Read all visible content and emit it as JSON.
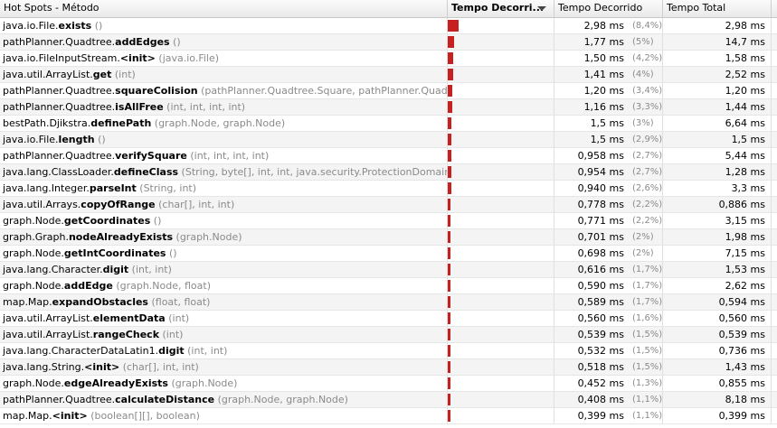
{
  "header": {
    "method_label": "Hot Spots - Método",
    "bar_label": "Tempo Decorri...",
    "self_time_label": "Tempo Decorrido",
    "total_time_label": "Tempo Total"
  },
  "colors": {
    "bar": "#c62020",
    "muted_text": "#8a8a8a"
  },
  "rows": [
    {
      "prefix": "java.io.File.",
      "name": "exists",
      "params": "()",
      "self_time": "2,98 ms",
      "self_pct": "(8,4%)",
      "pct_value": 8.4,
      "total_time": "2,98 ms"
    },
    {
      "prefix": "pathPlanner.Quadtree.",
      "name": "addEdges",
      "params": "()",
      "self_time": "1,77 ms",
      "self_pct": "(5%)",
      "pct_value": 5.0,
      "total_time": "14,7 ms"
    },
    {
      "prefix": "java.io.FileInputStream.",
      "name": "<init>",
      "params": "(java.io.File)",
      "self_time": "1,50 ms",
      "self_pct": "(4,2%)",
      "pct_value": 4.2,
      "total_time": "1,58 ms"
    },
    {
      "prefix": "java.util.ArrayList.",
      "name": "get",
      "params": "(int)",
      "self_time": "1,41 ms",
      "self_pct": "(4%)",
      "pct_value": 4.0,
      "total_time": "2,52 ms"
    },
    {
      "prefix": "pathPlanner.Quadtree.",
      "name": "squareColision",
      "params": "(pathPlanner.Quadtree.Square, pathPlanner.Quadtree.S...",
      "self_time": "1,20 ms",
      "self_pct": "(3,4%)",
      "pct_value": 3.4,
      "total_time": "1,20 ms"
    },
    {
      "prefix": "pathPlanner.Quadtree.",
      "name": "isAllFree",
      "params": "(int, int, int, int)",
      "self_time": "1,16 ms",
      "self_pct": "(3,3%)",
      "pct_value": 3.3,
      "total_time": "1,44 ms"
    },
    {
      "prefix": "bestPath.Djikstra.",
      "name": "definePath",
      "params": "(graph.Node, graph.Node)",
      "self_time": "1,5 ms",
      "self_pct": "(3%)",
      "pct_value": 3.0,
      "total_time": "6,64 ms"
    },
    {
      "prefix": "java.io.File.",
      "name": "length",
      "params": "()",
      "self_time": "1,5 ms",
      "self_pct": "(2,9%)",
      "pct_value": 2.9,
      "total_time": "1,5 ms"
    },
    {
      "prefix": "pathPlanner.Quadtree.",
      "name": "verifySquare",
      "params": "(int, int, int, int)",
      "self_time": "0,958 ms",
      "self_pct": "(2,7%)",
      "pct_value": 2.7,
      "total_time": "5,44 ms"
    },
    {
      "prefix": "java.lang.ClassLoader.",
      "name": "defineClass",
      "params": "(String, byte[], int, int, java.security.ProtectionDomain)",
      "self_time": "0,954 ms",
      "self_pct": "(2,7%)",
      "pct_value": 2.7,
      "total_time": "1,28 ms"
    },
    {
      "prefix": "java.lang.Integer.",
      "name": "parseInt",
      "params": "(String, int)",
      "self_time": "0,940 ms",
      "self_pct": "(2,6%)",
      "pct_value": 2.6,
      "total_time": "3,3 ms"
    },
    {
      "prefix": "java.util.Arrays.",
      "name": "copyOfRange",
      "params": "(char[], int, int)",
      "self_time": "0,778 ms",
      "self_pct": "(2,2%)",
      "pct_value": 2.2,
      "total_time": "0,886 ms"
    },
    {
      "prefix": "graph.Node.",
      "name": "getCoordinates",
      "params": "()",
      "self_time": "0,771 ms",
      "self_pct": "(2,2%)",
      "pct_value": 2.2,
      "total_time": "3,15 ms"
    },
    {
      "prefix": "graph.Graph.",
      "name": "nodeAlreadyExists",
      "params": "(graph.Node)",
      "self_time": "0,701 ms",
      "self_pct": "(2%)",
      "pct_value": 2.0,
      "total_time": "1,98 ms"
    },
    {
      "prefix": "graph.Node.",
      "name": "getIntCoordinates",
      "params": "()",
      "self_time": "0,698 ms",
      "self_pct": "(2%)",
      "pct_value": 2.0,
      "total_time": "7,15 ms"
    },
    {
      "prefix": "java.lang.Character.",
      "name": "digit",
      "params": "(int, int)",
      "self_time": "0,616 ms",
      "self_pct": "(1,7%)",
      "pct_value": 1.7,
      "total_time": "1,53 ms"
    },
    {
      "prefix": "graph.Node.",
      "name": "addEdge",
      "params": "(graph.Node, float)",
      "self_time": "0,590 ms",
      "self_pct": "(1,7%)",
      "pct_value": 1.7,
      "total_time": "2,62 ms"
    },
    {
      "prefix": "map.Map.",
      "name": "expandObstacles",
      "params": "(float, float)",
      "self_time": "0,589 ms",
      "self_pct": "(1,7%)",
      "pct_value": 1.7,
      "total_time": "0,594 ms"
    },
    {
      "prefix": "java.util.ArrayList.",
      "name": "elementData",
      "params": "(int)",
      "self_time": "0,560 ms",
      "self_pct": "(1,6%)",
      "pct_value": 1.6,
      "total_time": "0,560 ms"
    },
    {
      "prefix": "java.util.ArrayList.",
      "name": "rangeCheck",
      "params": "(int)",
      "self_time": "0,539 ms",
      "self_pct": "(1,5%)",
      "pct_value": 1.5,
      "total_time": "0,539 ms"
    },
    {
      "prefix": "java.lang.CharacterDataLatin1.",
      "name": "digit",
      "params": "(int, int)",
      "self_time": "0,532 ms",
      "self_pct": "(1,5%)",
      "pct_value": 1.5,
      "total_time": "0,736 ms"
    },
    {
      "prefix": "java.lang.String.",
      "name": "<init>",
      "params": "(char[], int, int)",
      "self_time": "0,518 ms",
      "self_pct": "(1,5%)",
      "pct_value": 1.5,
      "total_time": "1,43 ms"
    },
    {
      "prefix": "graph.Node.",
      "name": "edgeAlreadyExists",
      "params": "(graph.Node)",
      "self_time": "0,452 ms",
      "self_pct": "(1,3%)",
      "pct_value": 1.3,
      "total_time": "0,855 ms"
    },
    {
      "prefix": "pathPlanner.Quadtree.",
      "name": "calculateDistance",
      "params": "(graph.Node, graph.Node)",
      "self_time": "0,408 ms",
      "self_pct": "(1,1%)",
      "pct_value": 1.1,
      "total_time": "8,18 ms"
    },
    {
      "prefix": "map.Map.",
      "name": "<init>",
      "params": "(boolean[][], boolean)",
      "self_time": "0,399 ms",
      "self_pct": "(1,1%)",
      "pct_value": 1.1,
      "total_time": "0,399 ms"
    }
  ]
}
